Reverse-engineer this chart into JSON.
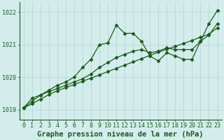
{
  "title": "Graphe pression niveau de la mer (hPa)",
  "xlim": [
    -0.5,
    23.5
  ],
  "ylim": [
    1018.7,
    1022.3
  ],
  "yticks": [
    1019,
    1020,
    1021,
    1022
  ],
  "xticks": [
    0,
    1,
    2,
    3,
    4,
    5,
    6,
    7,
    8,
    9,
    10,
    11,
    12,
    13,
    14,
    15,
    16,
    17,
    18,
    19,
    20,
    21,
    22,
    23
  ],
  "bg_color": "#d4edec",
  "grid_color": "#b0d4d0",
  "line_color": "#1a5c1a",
  "line1": [
    1019.05,
    1019.35,
    1019.45,
    1019.6,
    1019.75,
    1019.85,
    1020.0,
    1020.3,
    1020.55,
    1021.0,
    1021.05,
    1021.6,
    1021.35,
    1021.35,
    1021.1,
    1020.65,
    1020.5,
    1020.75,
    1020.65,
    1020.55,
    1020.55,
    1021.1,
    1021.65,
    1022.05
  ],
  "line2": [
    1019.05,
    1019.25,
    1019.45,
    1019.55,
    1019.65,
    1019.75,
    1019.85,
    1019.95,
    1020.1,
    1020.3,
    1020.45,
    1020.6,
    1020.7,
    1020.8,
    1020.85,
    1020.75,
    1020.8,
    1020.9,
    1020.85,
    1020.85,
    1020.85,
    1021.1,
    1021.3,
    1021.65
  ],
  "line3": [
    1019.05,
    1019.18,
    1019.32,
    1019.46,
    1019.58,
    1019.68,
    1019.77,
    1019.87,
    1019.97,
    1020.07,
    1020.17,
    1020.27,
    1020.37,
    1020.47,
    1020.57,
    1020.67,
    1020.77,
    1020.86,
    1020.95,
    1021.04,
    1021.13,
    1021.23,
    1021.32,
    1021.52
  ],
  "marker": "D",
  "markersize": 2.5,
  "linewidth": 0.9,
  "title_fontsize": 7.5,
  "tick_fontsize": 6.0
}
